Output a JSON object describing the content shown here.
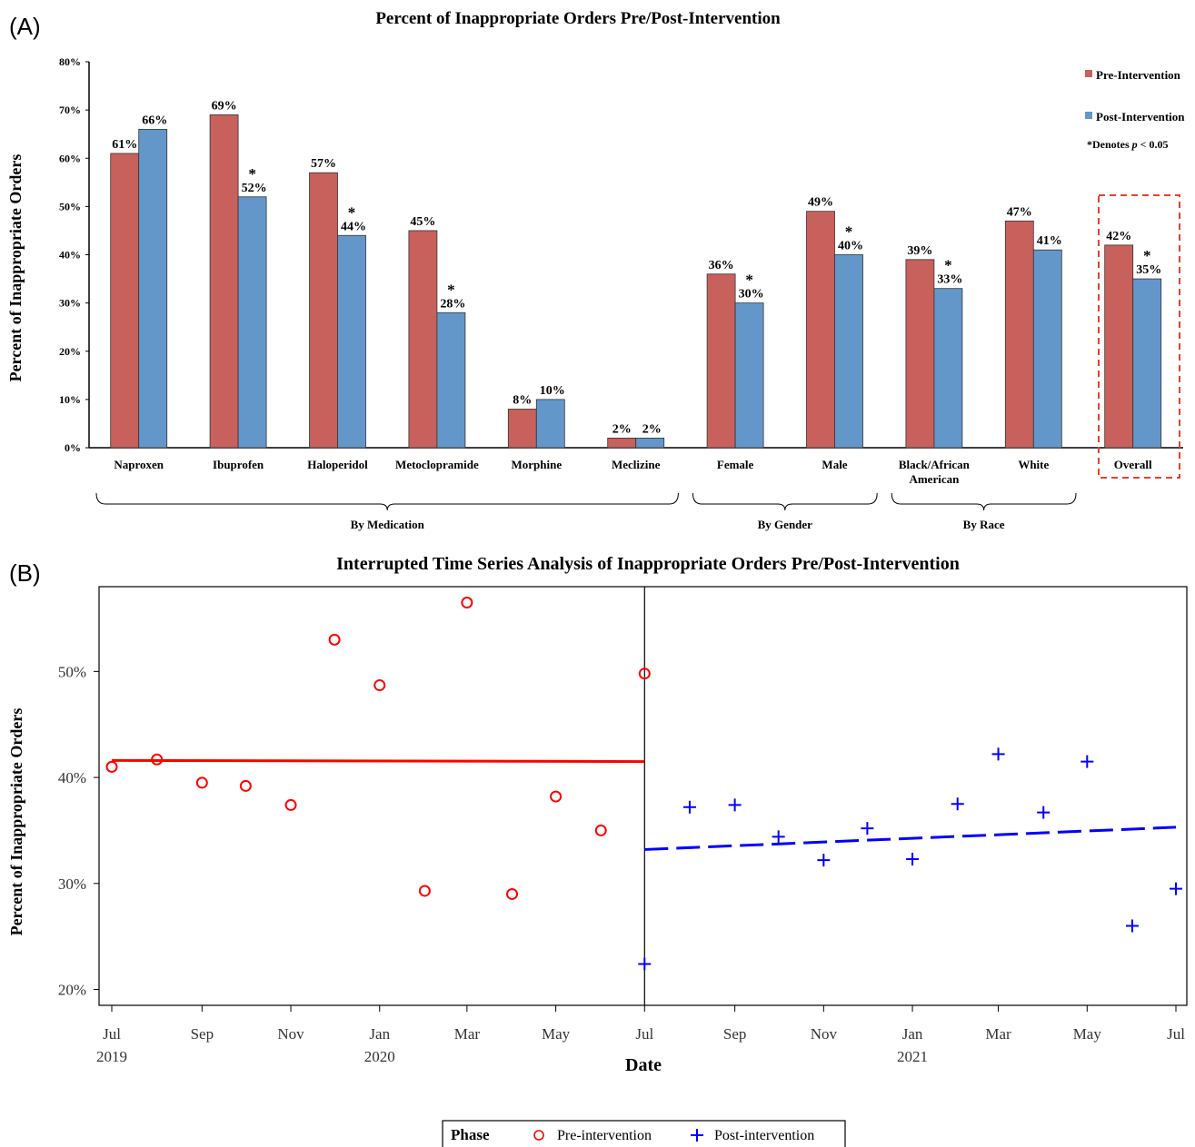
{
  "panel_a": {
    "panel_label": "(A)",
    "legend": {
      "pre": "Pre-Intervention",
      "post": "Post-Intervention",
      "note_prefix": "*Denotes ",
      "note_p": "p",
      "note_suffix": " < 0.05"
    },
    "groups": [
      {
        "label": "By Medication",
        "from": 0,
        "to": 5
      },
      {
        "label": "By Gender",
        "from": 6,
        "to": 7
      },
      {
        "label": "By Race",
        "from": 8,
        "to": 9
      }
    ],
    "highlight": "Overall"
  },
  "panel_b": {
    "panel_label": "(B)",
    "legend": {
      "title": "Phase",
      "pre": "Pre-intervention",
      "post": "Post-intervention"
    }
  },
  "colors": {
    "pre_bar": "#c8605c",
    "post_bar": "#6497c9",
    "pre_series": "#ff0000",
    "post_series": "#0000ff",
    "highlight_box": "#e8412b"
  },
  "chart_data": [
    {
      "type": "bar",
      "title": "Percent of Inappropriate Orders Pre/Post-Intervention",
      "xlabel": "",
      "ylabel": "Percent of Inappropriate Orders",
      "ylim": [
        0,
        80
      ],
      "yticks": [
        "0%",
        "10%",
        "20%",
        "30%",
        "40%",
        "50%",
        "60%",
        "70%",
        "80%"
      ],
      "grid": false,
      "legend_position": "top-right",
      "categories": [
        [
          "Naproxen"
        ],
        [
          "Ibuprofen"
        ],
        [
          "Haloperidol"
        ],
        [
          "Metoclopramide"
        ],
        [
          "Morphine"
        ],
        [
          "Meclizine"
        ],
        [
          "Female"
        ],
        [
          "Male"
        ],
        [
          "Black/African",
          "American"
        ],
        [
          "White"
        ],
        [
          "Overall"
        ]
      ],
      "series": [
        {
          "name": "Pre-Intervention",
          "values": [
            61,
            69,
            57,
            45,
            8,
            2,
            36,
            49,
            39,
            47,
            42
          ],
          "labels": [
            "61%",
            "69%",
            "57%",
            "45%",
            "8%",
            "2%",
            "36%",
            "49%",
            "39%",
            "47%",
            "42%"
          ]
        },
        {
          "name": "Post-Intervention",
          "values": [
            66,
            52,
            44,
            28,
            10,
            2,
            30,
            40,
            33,
            41,
            35
          ],
          "labels": [
            "66%",
            "52%",
            "44%",
            "28%",
            "10%",
            "2%",
            "30%",
            "40%",
            "33%",
            "41%",
            "35%"
          ],
          "significant": [
            false,
            true,
            true,
            true,
            false,
            false,
            true,
            true,
            true,
            false,
            true
          ]
        }
      ],
      "significance_mark": "*"
    },
    {
      "type": "scatter",
      "title": "Interrupted Time Series Analysis of Inappropriate Orders Pre/Post-Intervention",
      "xlabel": "Date",
      "ylabel": "Percent of Inappropriate Orders",
      "ylim": [
        18.5,
        58
      ],
      "yticks": [
        "20%",
        "30%",
        "40%",
        "50%"
      ],
      "ytick_values": [
        20,
        30,
        40,
        50
      ],
      "xlim": [
        "2019-07-01",
        "2021-07-01"
      ],
      "xticks": [
        {
          "date": "2019-07-01",
          "label": "Jul",
          "year": "2019"
        },
        {
          "date": "2019-09-01",
          "label": "Sep",
          "year": ""
        },
        {
          "date": "2019-11-01",
          "label": "Nov",
          "year": ""
        },
        {
          "date": "2020-01-01",
          "label": "Jan",
          "year": "2020"
        },
        {
          "date": "2020-03-01",
          "label": "Mar",
          "year": ""
        },
        {
          "date": "2020-05-01",
          "label": "May",
          "year": ""
        },
        {
          "date": "2020-07-01",
          "label": "Jul",
          "year": ""
        },
        {
          "date": "2020-09-01",
          "label": "Sep",
          "year": ""
        },
        {
          "date": "2020-11-01",
          "label": "Nov",
          "year": ""
        },
        {
          "date": "2021-01-01",
          "label": "Jan",
          "year": "2021"
        },
        {
          "date": "2021-03-01",
          "label": "Mar",
          "year": ""
        },
        {
          "date": "2021-05-01",
          "label": "May",
          "year": ""
        },
        {
          "date": "2021-07-01",
          "label": "Jul",
          "year": ""
        }
      ],
      "intervention_date": "2020-07-01",
      "grid": false,
      "legend_position": "bottom",
      "series": [
        {
          "name": "Pre-intervention",
          "marker": "circle",
          "x": [
            "2019-07-01",
            "2019-08-01",
            "2019-09-01",
            "2019-10-01",
            "2019-11-01",
            "2019-12-01",
            "2020-01-01",
            "2020-02-01",
            "2020-03-01",
            "2020-04-01",
            "2020-05-01",
            "2020-06-01",
            "2020-07-01"
          ],
          "y": [
            41.0,
            41.7,
            39.5,
            39.2,
            37.4,
            53.0,
            48.7,
            29.3,
            56.5,
            29.0,
            38.2,
            35.0,
            49.8
          ]
        },
        {
          "name": "Post-intervention",
          "marker": "plus",
          "x": [
            "2020-07-01",
            "2020-08-01",
            "2020-09-01",
            "2020-10-01",
            "2020-11-01",
            "2020-12-01",
            "2021-01-01",
            "2021-02-01",
            "2021-03-01",
            "2021-04-01",
            "2021-05-01",
            "2021-06-01",
            "2021-07-01"
          ],
          "y": [
            22.4,
            37.2,
            37.4,
            34.4,
            32.2,
            35.2,
            32.3,
            37.5,
            42.2,
            36.7,
            41.5,
            26.0,
            29.5
          ]
        }
      ],
      "trend_lines": [
        {
          "name": "Pre-intervention",
          "style": "solid",
          "x": [
            "2019-07-01",
            "2020-07-01"
          ],
          "y": [
            41.6,
            41.5
          ]
        },
        {
          "name": "Post-intervention",
          "style": "dashed",
          "x": [
            "2020-07-01",
            "2021-07-01"
          ],
          "y": [
            33.2,
            35.3
          ]
        }
      ]
    }
  ]
}
